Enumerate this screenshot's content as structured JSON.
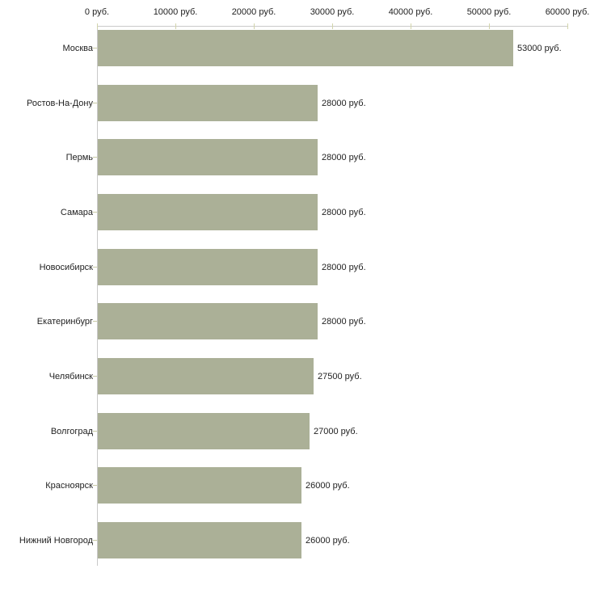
{
  "chart_data": {
    "type": "bar",
    "orientation": "horizontal",
    "title": "",
    "xlabel": "",
    "ylabel": "",
    "unit": "руб.",
    "categories": [
      "Москва",
      "Ростов-На-Дону",
      "Пермь",
      "Самара",
      "Новосибирск",
      "Екатеринбург",
      "Челябинск",
      "Волгоград",
      "Красноярск",
      "Нижний Новгород"
    ],
    "values": [
      53000,
      28000,
      28000,
      28000,
      28000,
      28000,
      27500,
      27000,
      26000,
      26000
    ],
    "value_labels": [
      "53000 руб.",
      "28000 руб.",
      "28000 руб.",
      "28000 руб.",
      "28000 руб.",
      "28000 руб.",
      "27500 руб.",
      "27000 руб.",
      "26000 руб.",
      "26000 руб."
    ],
    "x_tick_values": [
      0,
      10000,
      20000,
      30000,
      40000,
      50000,
      60000
    ],
    "x_tick_labels": [
      "0 руб.",
      "10000 руб.",
      "20000 руб.",
      "30000 руб.",
      "40000 руб.",
      "50000 руб.",
      "60000 руб."
    ],
    "xlim": [
      0,
      60000
    ],
    "grid": false,
    "legend": false,
    "axis_position": "top-left",
    "colors": {
      "bar": "#abb097",
      "axis": "#c9c9c9",
      "tick": "#d2d4ab",
      "category_tick": "#c9cba6",
      "text": "#222222",
      "background": "#ffffff"
    }
  }
}
